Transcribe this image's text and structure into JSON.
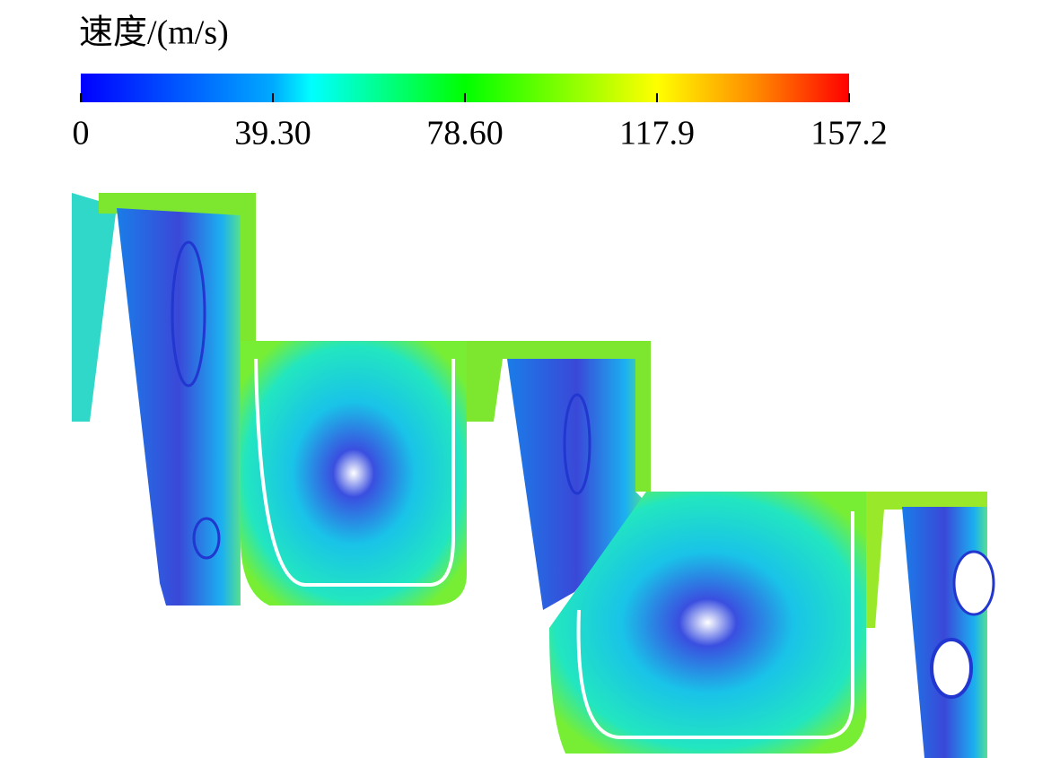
{
  "chart_data": {
    "type": "streamline",
    "colorbar": {
      "title": "速度/(m/s)",
      "clim": [
        0,
        157.2
      ],
      "ticks": [
        0,
        {
          "value": 39.3,
          "label": "39.30"
        },
        {
          "value": 78.6,
          "label": "78.60"
        },
        117.9,
        157.2
      ]
    }
  }
}
